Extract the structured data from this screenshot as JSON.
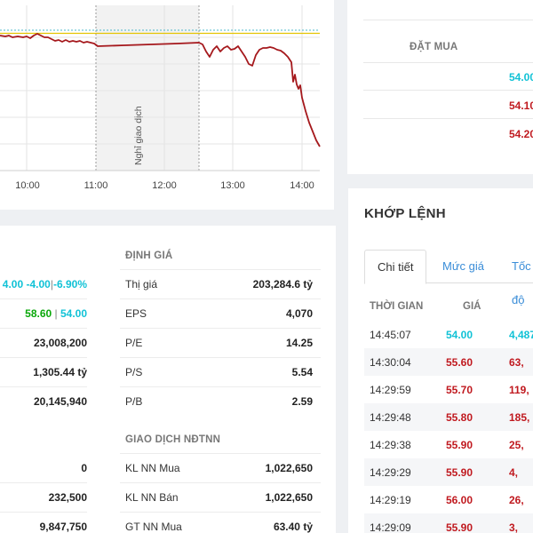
{
  "chart": {
    "time_labels": [
      "10:00",
      "11:00",
      "12:00",
      "13:00",
      "14:00"
    ],
    "break_label": "Nghỉ giao dịch",
    "colors": {
      "line": "#a5181c",
      "ref": "#e4c400",
      "ceiling": "#4ab8c8",
      "break_band": "#f2f2f2"
    }
  },
  "orderbook": {
    "header": "ĐẶT MUA",
    "prices": [
      {
        "text": "54.00",
        "color": "cyan"
      },
      {
        "text": "54.10",
        "color": "red"
      },
      {
        "text": "54.20",
        "color": "red"
      }
    ]
  },
  "stats": {
    "left_rows": [
      {
        "segments": [
          {
            "text": "4.00",
            "color": "cyan"
          },
          {
            "text": " -4.00",
            "color": "cyan"
          },
          {
            "text": "|",
            "color": "gray"
          },
          {
            "text": "-6.90%",
            "color": "cyan"
          }
        ]
      },
      {
        "segments": [
          {
            "text": "58.60",
            "color": "green"
          },
          {
            "text": " | ",
            "color": "gray"
          },
          {
            "text": "54.00",
            "color": "cyan"
          }
        ]
      },
      {
        "segments": [
          {
            "text": "23,008,200",
            "color": "dark"
          }
        ]
      },
      {
        "segments": [
          {
            "text": "1,305.44 tỷ",
            "color": "dark"
          }
        ]
      },
      {
        "segments": [
          {
            "text": "20,145,940",
            "color": "dark"
          }
        ]
      }
    ],
    "left_rows2": [
      {
        "segments": [
          {
            "text": "0",
            "color": "dark"
          }
        ]
      },
      {
        "segments": [
          {
            "text": "232,500",
            "color": "dark"
          }
        ]
      },
      {
        "segments": [
          {
            "text": "9,847,750",
            "color": "dark"
          }
        ]
      }
    ],
    "valuation": {
      "title": "ĐỊNH GIÁ",
      "rows": [
        {
          "label": "Thị giá",
          "value": "203,284.6 tỷ"
        },
        {
          "label": "EPS",
          "value": "4,070"
        },
        {
          "label": "P/E",
          "value": "14.25"
        },
        {
          "label": "P/S",
          "value": "5.54"
        },
        {
          "label": "P/B",
          "value": "2.59"
        }
      ]
    },
    "foreign": {
      "title": "GIAO DỊCH NĐTNN",
      "rows": [
        {
          "label": "KL NN Mua",
          "value": "1,022,650"
        },
        {
          "label": "KL NN Bán",
          "value": "1,022,650"
        },
        {
          "label": "GT NN Mua",
          "value": "63.40 tỷ"
        }
      ]
    }
  },
  "match": {
    "title": "KHỚP LỆNH",
    "tabs": [
      "Chi tiết",
      "Mức giá",
      "Tốc độ"
    ],
    "columns": {
      "time": "THỜI GIAN",
      "price": "GIÁ"
    },
    "rows": [
      {
        "time": "14:45:07",
        "price": "54.00",
        "price_color": "cyan",
        "volume": "4,487,"
      },
      {
        "time": "14:30:04",
        "price": "55.60",
        "price_color": "red",
        "volume": "63,"
      },
      {
        "time": "14:29:59",
        "price": "55.70",
        "price_color": "red",
        "volume": "119,"
      },
      {
        "time": "14:29:48",
        "price": "55.80",
        "price_color": "red",
        "volume": "185,"
      },
      {
        "time": "14:29:38",
        "price": "55.90",
        "price_color": "red",
        "volume": "25,"
      },
      {
        "time": "14:29:29",
        "price": "55.90",
        "price_color": "red",
        "volume": "4,"
      },
      {
        "time": "14:29:19",
        "price": "56.00",
        "price_color": "red",
        "volume": "26,"
      },
      {
        "time": "14:29:09",
        "price": "55.90",
        "price_color": "red",
        "volume": "3,"
      }
    ]
  }
}
